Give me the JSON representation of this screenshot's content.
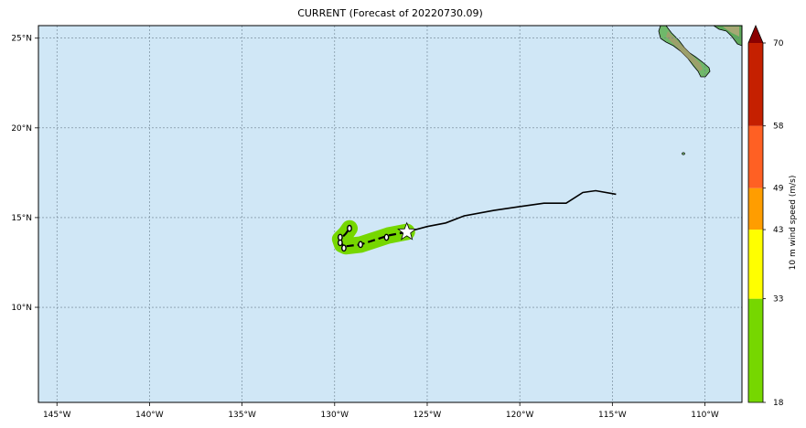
{
  "title": "CURRENT (Forecast of 20220730.09)",
  "map": {
    "lon_range": [
      -146,
      -108
    ],
    "lat_range": [
      4.7,
      25.7
    ],
    "ocean_color": "#d0e7f6",
    "grid": true,
    "lon_ticks": [
      {
        "value": -145,
        "label": "145°W"
      },
      {
        "value": -140,
        "label": "140°W"
      },
      {
        "value": -135,
        "label": "135°W"
      },
      {
        "value": -130,
        "label": "130°W"
      },
      {
        "value": -125,
        "label": "125°W"
      },
      {
        "value": -120,
        "label": "120°W"
      },
      {
        "value": -115,
        "label": "115°W"
      },
      {
        "value": -110,
        "label": "110°W"
      }
    ],
    "lat_ticks": [
      {
        "value": 25,
        "label": "25°N"
      },
      {
        "value": 20,
        "label": "20°N"
      },
      {
        "value": 15,
        "label": "15°N"
      },
      {
        "value": 10,
        "label": "10°N"
      }
    ]
  },
  "track": {
    "past": [
      [
        -114.8,
        16.3
      ],
      [
        -115.9,
        16.5
      ],
      [
        -116.6,
        16.4
      ],
      [
        -117.5,
        15.8
      ],
      [
        -118.7,
        15.8
      ],
      [
        -120.1,
        15.6
      ],
      [
        -121.4,
        15.4
      ],
      [
        -123.0,
        15.1
      ],
      [
        -124.0,
        14.7
      ],
      [
        -125.0,
        14.5
      ],
      [
        -126.1,
        14.2
      ]
    ],
    "current_position": [
      -126.1,
      14.2
    ],
    "forecast": [
      [
        -126.1,
        14.2
      ],
      [
        -127.1,
        14.0
      ],
      [
        -127.7,
        13.8
      ],
      [
        -128.6,
        13.5
      ],
      [
        -129.4,
        13.4
      ],
      [
        -129.6,
        13.5
      ],
      [
        -129.7,
        13.8
      ],
      [
        -129.4,
        14.1
      ],
      [
        -129.2,
        14.4
      ]
    ],
    "forecast_points": [
      [
        -127.2,
        13.9
      ],
      [
        -128.6,
        13.5
      ],
      [
        -129.5,
        13.3
      ],
      [
        -129.7,
        13.6
      ],
      [
        -129.7,
        13.9
      ],
      [
        -129.2,
        14.4
      ]
    ],
    "wind_swath_color": "#76d700"
  },
  "colorbar": {
    "label": "10 m wind speed (m/s)",
    "levels": [
      18,
      33,
      43,
      49,
      58,
      70
    ],
    "colors": [
      "#76d700",
      "#ffff00",
      "#ff9d00",
      "#ff6023",
      "#c52000"
    ],
    "extend_color": "#8b0000"
  }
}
